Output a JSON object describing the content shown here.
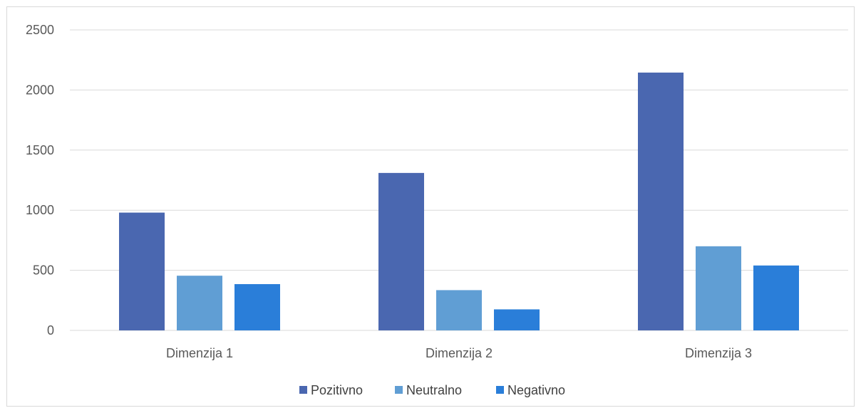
{
  "chart_data": {
    "type": "bar",
    "categories": [
      "Dimenzija 1",
      "Dimenzija 2",
      "Dimenzija 3"
    ],
    "series": [
      {
        "name": "Pozitivno",
        "values": [
          980,
          1310,
          2145
        ],
        "color": "#4a67b0"
      },
      {
        "name": "Neutralno",
        "values": [
          455,
          335,
          700
        ],
        "color": "#609ed4"
      },
      {
        "name": "Negativno",
        "values": [
          385,
          175,
          540
        ],
        "color": "#2a7ed9"
      }
    ],
    "y_ticks": [
      "0",
      "500",
      "1000",
      "1500",
      "2000",
      "2500"
    ],
    "ylim": [
      0,
      2500
    ],
    "grid": true,
    "legend_position": "bottom"
  }
}
